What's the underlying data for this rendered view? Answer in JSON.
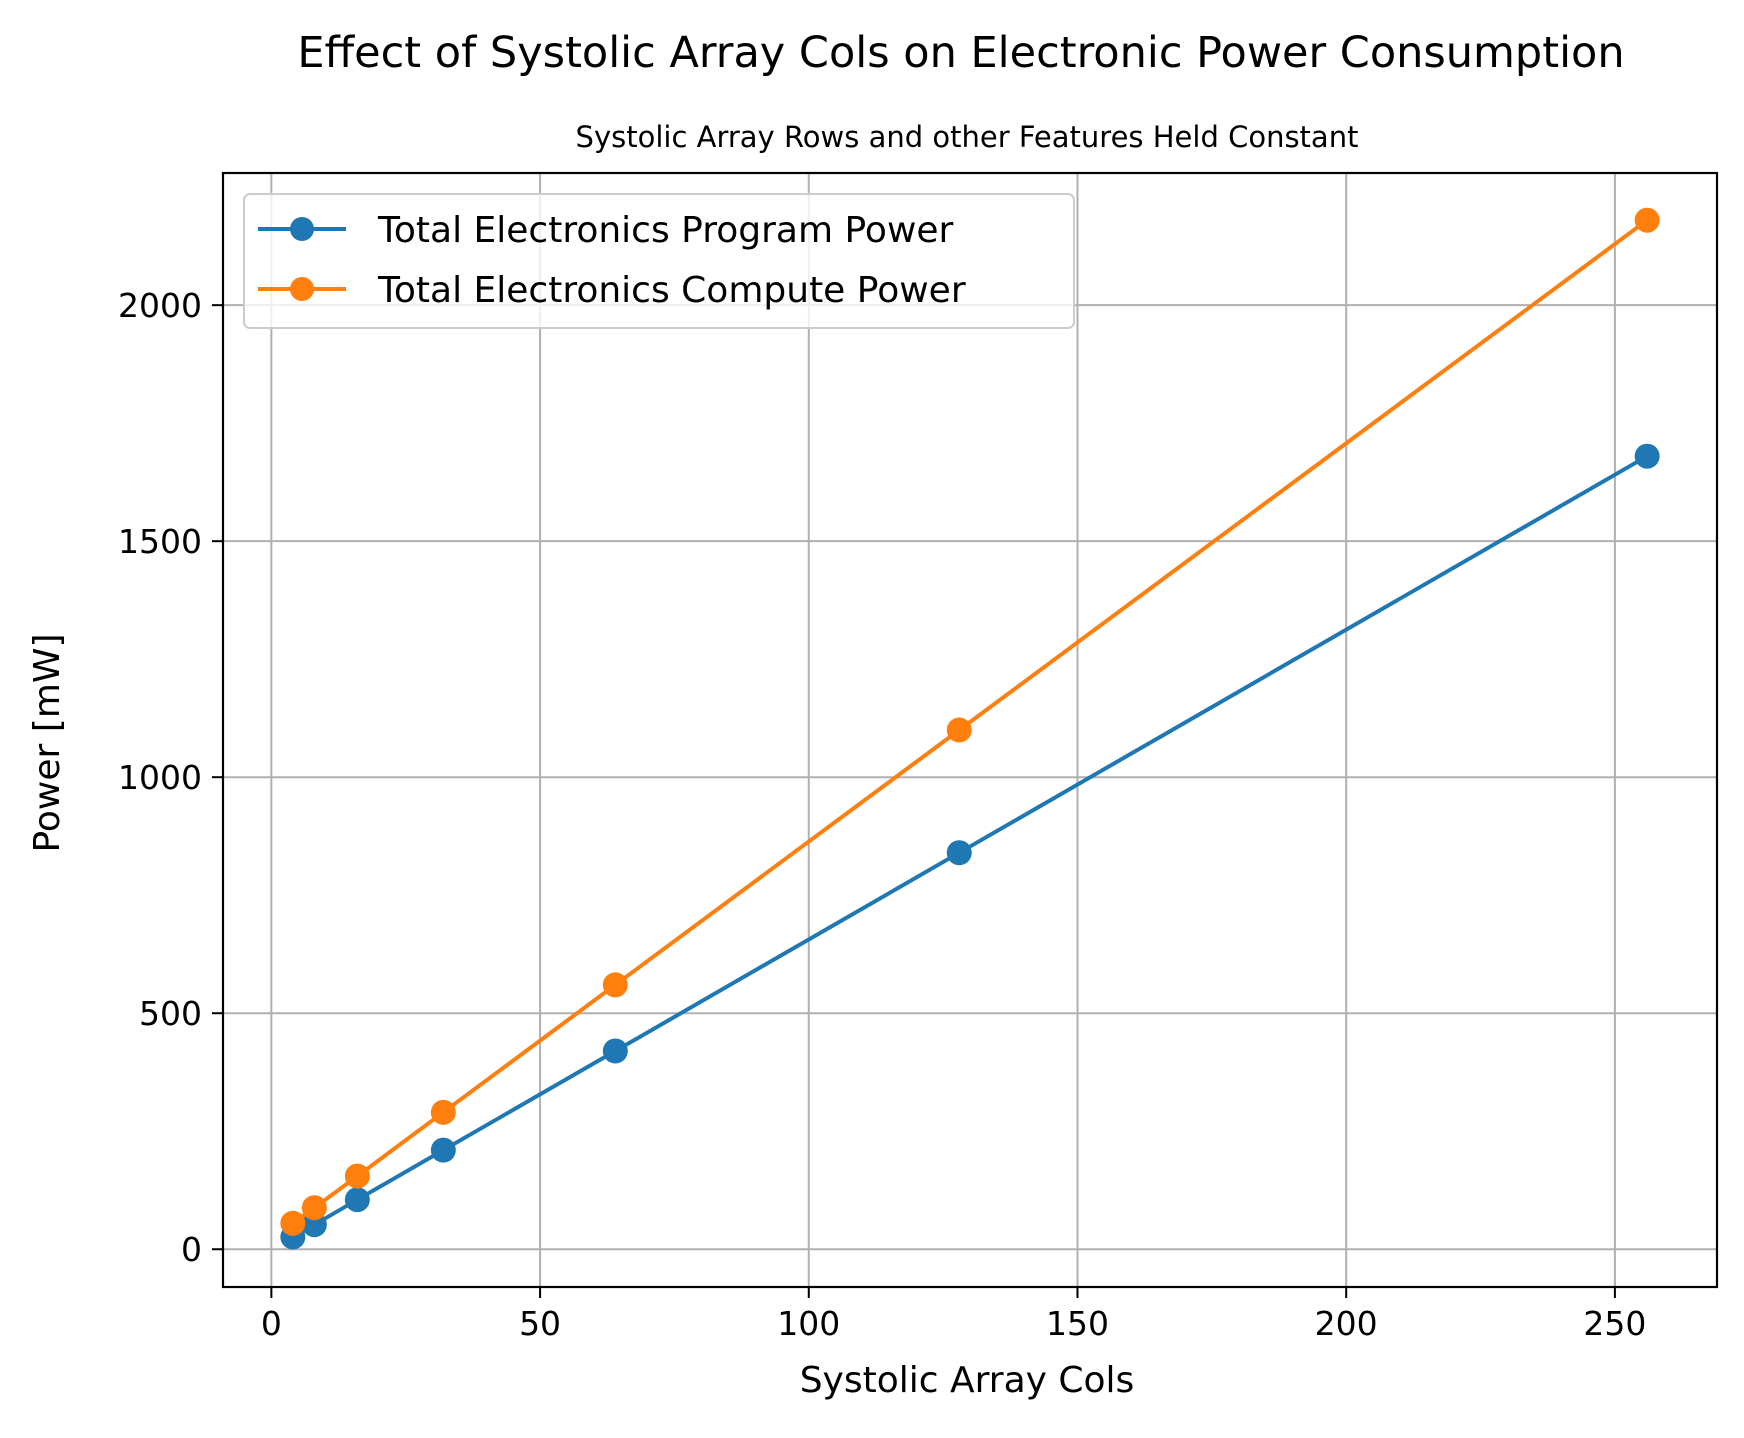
{
  "chart_data": {
    "type": "line",
    "title": "Effect of Systolic Array Cols on Electronic Power Consumption",
    "subtitle": "Systolic Array Rows and other Features Held Constant",
    "xlabel": "Systolic Array Cols",
    "ylabel": "Power [mW]",
    "x": [
      4,
      8,
      16,
      32,
      64,
      128,
      256
    ],
    "xlim": [
      -9,
      269
    ],
    "ylim": [
      -80,
      2280
    ],
    "xticks": [
      0,
      50,
      100,
      150,
      200,
      250
    ],
    "yticks": [
      0,
      500,
      1000,
      1500,
      2000
    ],
    "xtick_labels": [
      "0",
      "50",
      "100",
      "150",
      "200",
      "250"
    ],
    "ytick_labels": [
      "0",
      "500",
      "1000",
      "1500",
      "2000"
    ],
    "grid": true,
    "legend_position": "upper-left",
    "series": [
      {
        "name": "Total Electronics Program Power",
        "color": "#1f77b4",
        "marker": "circle",
        "values": [
          26,
          52,
          105,
          210,
          420,
          840,
          1680
        ]
      },
      {
        "name": "Total Electronics Compute Power",
        "color": "#ff7f0e",
        "marker": "circle",
        "values": [
          55,
          88,
          155,
          290,
          560,
          1100,
          2180
        ]
      }
    ]
  }
}
